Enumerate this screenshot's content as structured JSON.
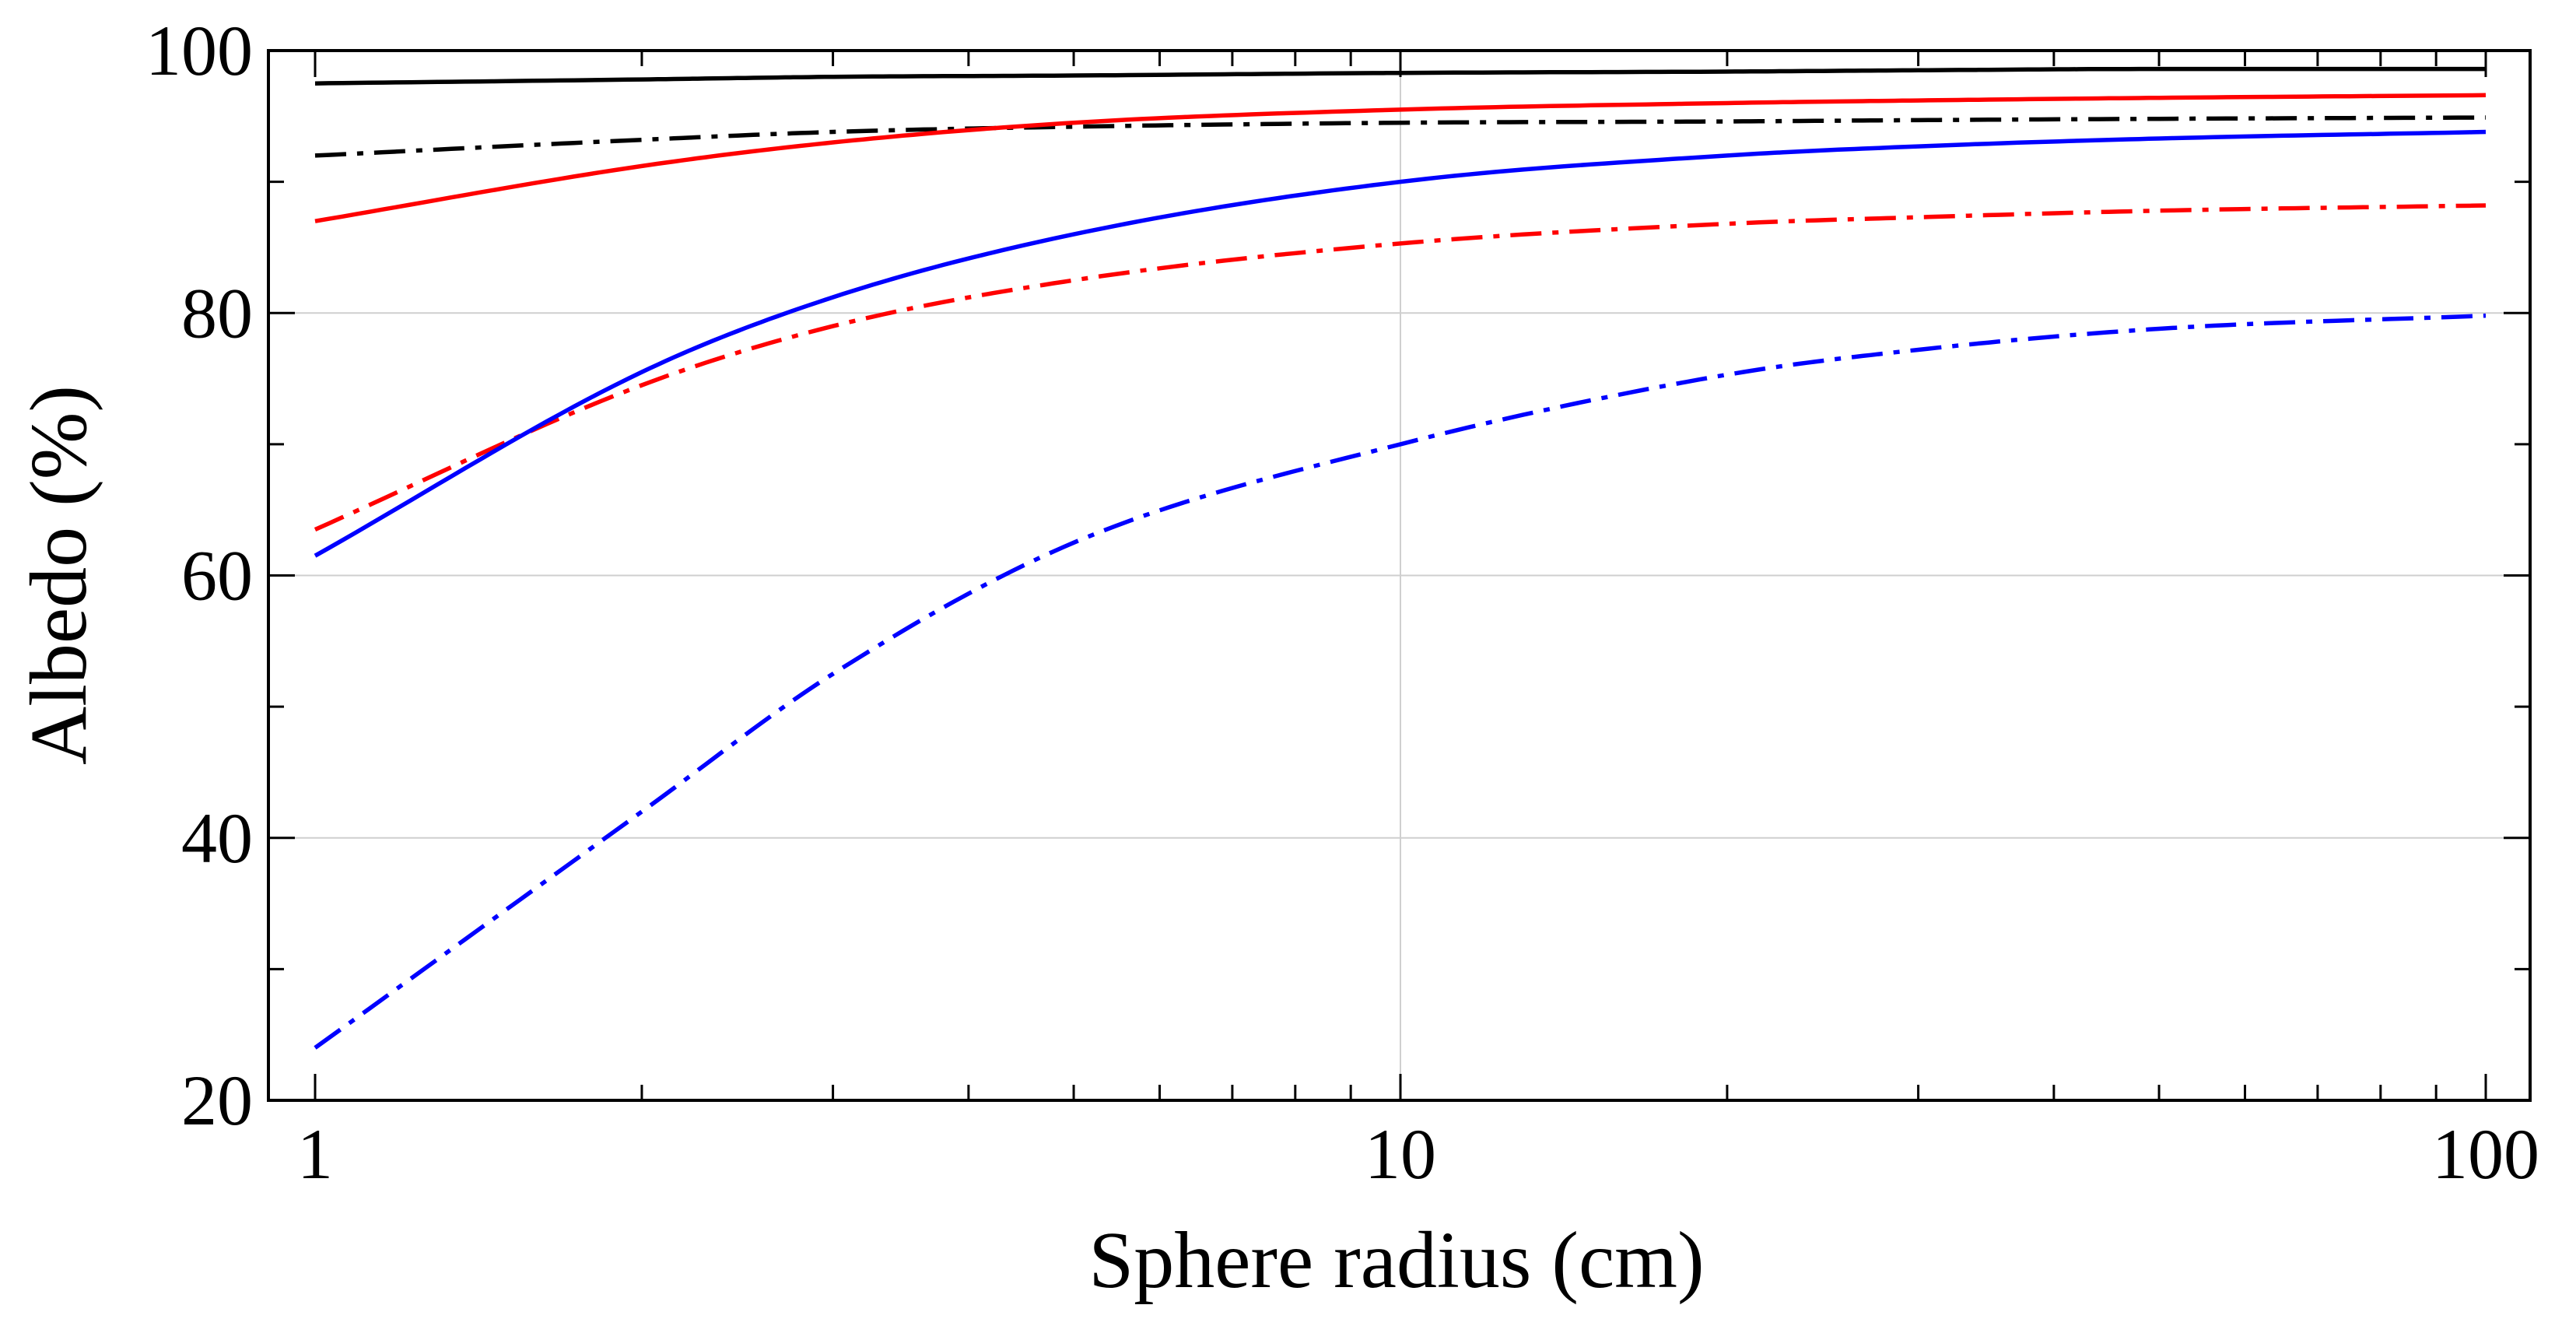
{
  "chart_data": {
    "type": "line",
    "title": "",
    "xlabel": "Sphere radius (cm)",
    "ylabel": "Albedo (%)",
    "xscale": "log",
    "xlim": [
      1,
      100
    ],
    "ylim": [
      20,
      100
    ],
    "x_ticks": [
      1,
      10,
      100
    ],
    "y_ticks": [
      20,
      40,
      60,
      80,
      100
    ],
    "x_tick_labels": [
      "1",
      "10",
      "100"
    ],
    "y_tick_labels": [
      "20",
      "40",
      "60",
      "80",
      "100"
    ],
    "grid": true,
    "legend": null,
    "x": [
      1,
      2,
      3,
      5,
      10,
      20,
      30,
      50,
      100
    ],
    "series": [
      {
        "name": "black-solid",
        "color": "#000000",
        "style": "solid",
        "values": [
          97.5,
          97.8,
          98.0,
          98.1,
          98.3,
          98.4,
          98.5,
          98.6,
          98.6
        ]
      },
      {
        "name": "black-dashdot",
        "color": "#000000",
        "style": "dashdot",
        "values": [
          92.0,
          93.2,
          93.8,
          94.2,
          94.5,
          94.6,
          94.7,
          94.8,
          94.9
        ]
      },
      {
        "name": "red-solid",
        "color": "#ff0000",
        "style": "solid",
        "values": [
          87.0,
          91.2,
          93.0,
          94.5,
          95.5,
          96.0,
          96.2,
          96.4,
          96.6
        ]
      },
      {
        "name": "red-dashdot",
        "color": "#ff0000",
        "style": "dashdot",
        "values": [
          63.5,
          74.5,
          79.0,
          82.5,
          85.3,
          86.8,
          87.3,
          87.8,
          88.2
        ]
      },
      {
        "name": "blue-solid",
        "color": "#0000ff",
        "style": "solid",
        "values": [
          61.5,
          75.5,
          81.2,
          86.0,
          90.0,
          92.0,
          92.7,
          93.3,
          93.8
        ]
      },
      {
        "name": "blue-dashdot",
        "color": "#0000ff",
        "style": "dashdot",
        "values": [
          24.0,
          42.0,
          52.5,
          62.5,
          70.0,
          75.3,
          77.2,
          78.8,
          79.8
        ]
      }
    ]
  }
}
